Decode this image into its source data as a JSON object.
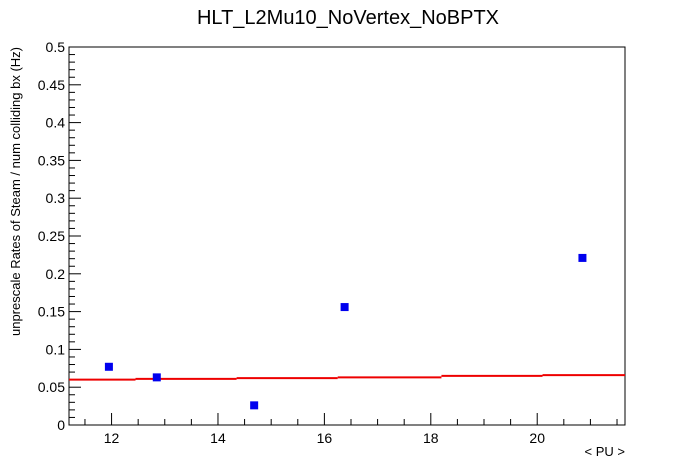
{
  "chart_data": {
    "type": "scatter",
    "title": "HLT_L2Mu10_NoVertex_NoBPTX",
    "xlabel": "< PU >",
    "ylabel": "unprescale Rates of Steam / num colliding bx (Hz)",
    "xlim": [
      11.2,
      21.65
    ],
    "ylim": [
      0,
      0.5
    ],
    "x_ticks": [
      12,
      14,
      16,
      18,
      20
    ],
    "y_ticks": [
      0,
      0.05,
      0.1,
      0.15,
      0.2,
      0.25,
      0.3,
      0.35,
      0.4,
      0.45,
      0.5
    ],
    "x_tick_labels": [
      "12",
      "14",
      "16",
      "18",
      "20"
    ],
    "y_tick_labels": [
      "0",
      "0.05",
      "0.1",
      "0.15",
      "0.2",
      "0.25",
      "0.3",
      "0.35",
      "0.4",
      "0.45",
      "0.5"
    ],
    "grid": false,
    "series": [
      {
        "kind": "points",
        "marker": "square",
        "color": "#0000ee",
        "points": [
          {
            "x": 11.95,
            "y": 0.077
          },
          {
            "x": 12.85,
            "y": 0.063
          },
          {
            "x": 14.68,
            "y": 0.026
          },
          {
            "x": 16.38,
            "y": 0.156
          },
          {
            "x": 20.85,
            "y": 0.221
          }
        ]
      },
      {
        "kind": "fit-line",
        "color": "#ee0000",
        "steps": [
          {
            "x0": 11.2,
            "x1": 12.45,
            "y": 0.06
          },
          {
            "x0": 12.45,
            "x1": 14.35,
            "y": 0.061
          },
          {
            "x0": 14.35,
            "x1": 16.25,
            "y": 0.062
          },
          {
            "x0": 16.25,
            "x1": 18.2,
            "y": 0.063
          },
          {
            "x0": 18.2,
            "x1": 20.1,
            "y": 0.065
          },
          {
            "x0": 20.1,
            "x1": 21.65,
            "y": 0.066
          }
        ]
      }
    ]
  }
}
